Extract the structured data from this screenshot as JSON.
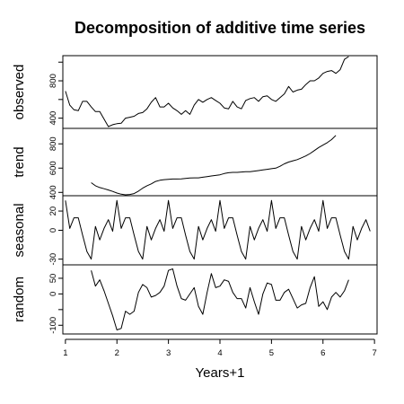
{
  "chart_data": {
    "type": "line",
    "title": "Decomposition of additive time series",
    "xlabel": "Years+1",
    "xlim": [
      0.95,
      7.05
    ],
    "xticks": [
      1,
      2,
      3,
      4,
      5,
      6,
      7
    ],
    "xtick_labels": [
      "1",
      "2",
      "3",
      "4",
      "5",
      "6",
      "7"
    ],
    "grid": false,
    "legend": "none",
    "series_color": "#000000",
    "panels": [
      {
        "name": "observed",
        "ylabel": "observed",
        "ylim": [
          300,
          1060
        ],
        "yticks": [
          400,
          600,
          800,
          1000
        ],
        "ytick_labels": [
          "400",
          "",
          "800",
          ""
        ],
        "x_start": 1.0,
        "x_step": 0.0833333,
        "values": [
          690,
          540,
          490,
          480,
          580,
          580,
          520,
          470,
          470,
          390,
          310,
          330,
          340,
          345,
          400,
          410,
          420,
          450,
          460,
          500,
          570,
          620,
          520,
          520,
          560,
          510,
          480,
          440,
          480,
          440,
          540,
          600,
          570,
          600,
          620,
          590,
          560,
          510,
          500,
          580,
          520,
          500,
          590,
          610,
          620,
          580,
          630,
          640,
          600,
          580,
          620,
          660,
          740,
          680,
          700,
          710,
          760,
          800,
          800,
          830,
          880,
          900,
          910,
          880,
          920,
          1030,
          1060
        ]
      },
      {
        "name": "trend",
        "ylabel": "trend",
        "ylim": [
          380,
          920
        ],
        "yticks": [
          400,
          600,
          800
        ],
        "ytick_labels": [
          "400",
          "600",
          "800"
        ],
        "x_start": 1.5,
        "x_step": 0.0833333,
        "values": [
          480,
          455,
          440,
          430,
          420,
          408,
          395,
          385,
          380,
          383,
          390,
          410,
          435,
          455,
          470,
          490,
          500,
          505,
          508,
          510,
          510,
          512,
          515,
          518,
          520,
          520,
          525,
          530,
          535,
          540,
          545,
          555,
          562,
          565,
          565,
          568,
          570,
          570,
          575,
          580,
          585,
          590,
          595,
          600,
          615,
          635,
          650,
          660,
          670,
          685,
          700,
          720,
          745,
          770,
          790,
          810,
          835,
          870
        ]
      },
      {
        "name": "seasonal",
        "ylabel": "seasonal",
        "ylim": [
          -35,
          35
        ],
        "yticks": [
          -30,
          0,
          20
        ],
        "ytick_labels": [
          "-30",
          "0",
          "20"
        ],
        "x_start": 1.0,
        "x_step": 0.0833333,
        "pattern": [
          31,
          2,
          13,
          13,
          -5,
          -22,
          -30,
          4,
          -10,
          2,
          11,
          -1
        ]
      },
      {
        "name": "random",
        "ylabel": "random",
        "ylim": [
          -125,
          90
        ],
        "yticks": [
          -100,
          -50,
          0,
          50
        ],
        "ytick_labels": [
          "-100",
          "",
          "0",
          "50"
        ],
        "x_start": 1.5,
        "x_step": 0.0833333,
        "values": [
          75,
          25,
          45,
          10,
          -30,
          -70,
          -115,
          -110,
          -55,
          -65,
          -55,
          5,
          30,
          20,
          -10,
          -5,
          5,
          25,
          75,
          80,
          25,
          -15,
          -20,
          0,
          20,
          -40,
          -65,
          5,
          65,
          20,
          25,
          45,
          40,
          5,
          -15,
          -15,
          -45,
          20,
          -25,
          -65,
          0,
          35,
          30,
          -20,
          -20,
          5,
          15,
          -15,
          -45,
          -35,
          -30,
          20,
          55,
          -40,
          -25,
          -50,
          -10,
          5,
          -10,
          10,
          45
        ]
      }
    ]
  }
}
